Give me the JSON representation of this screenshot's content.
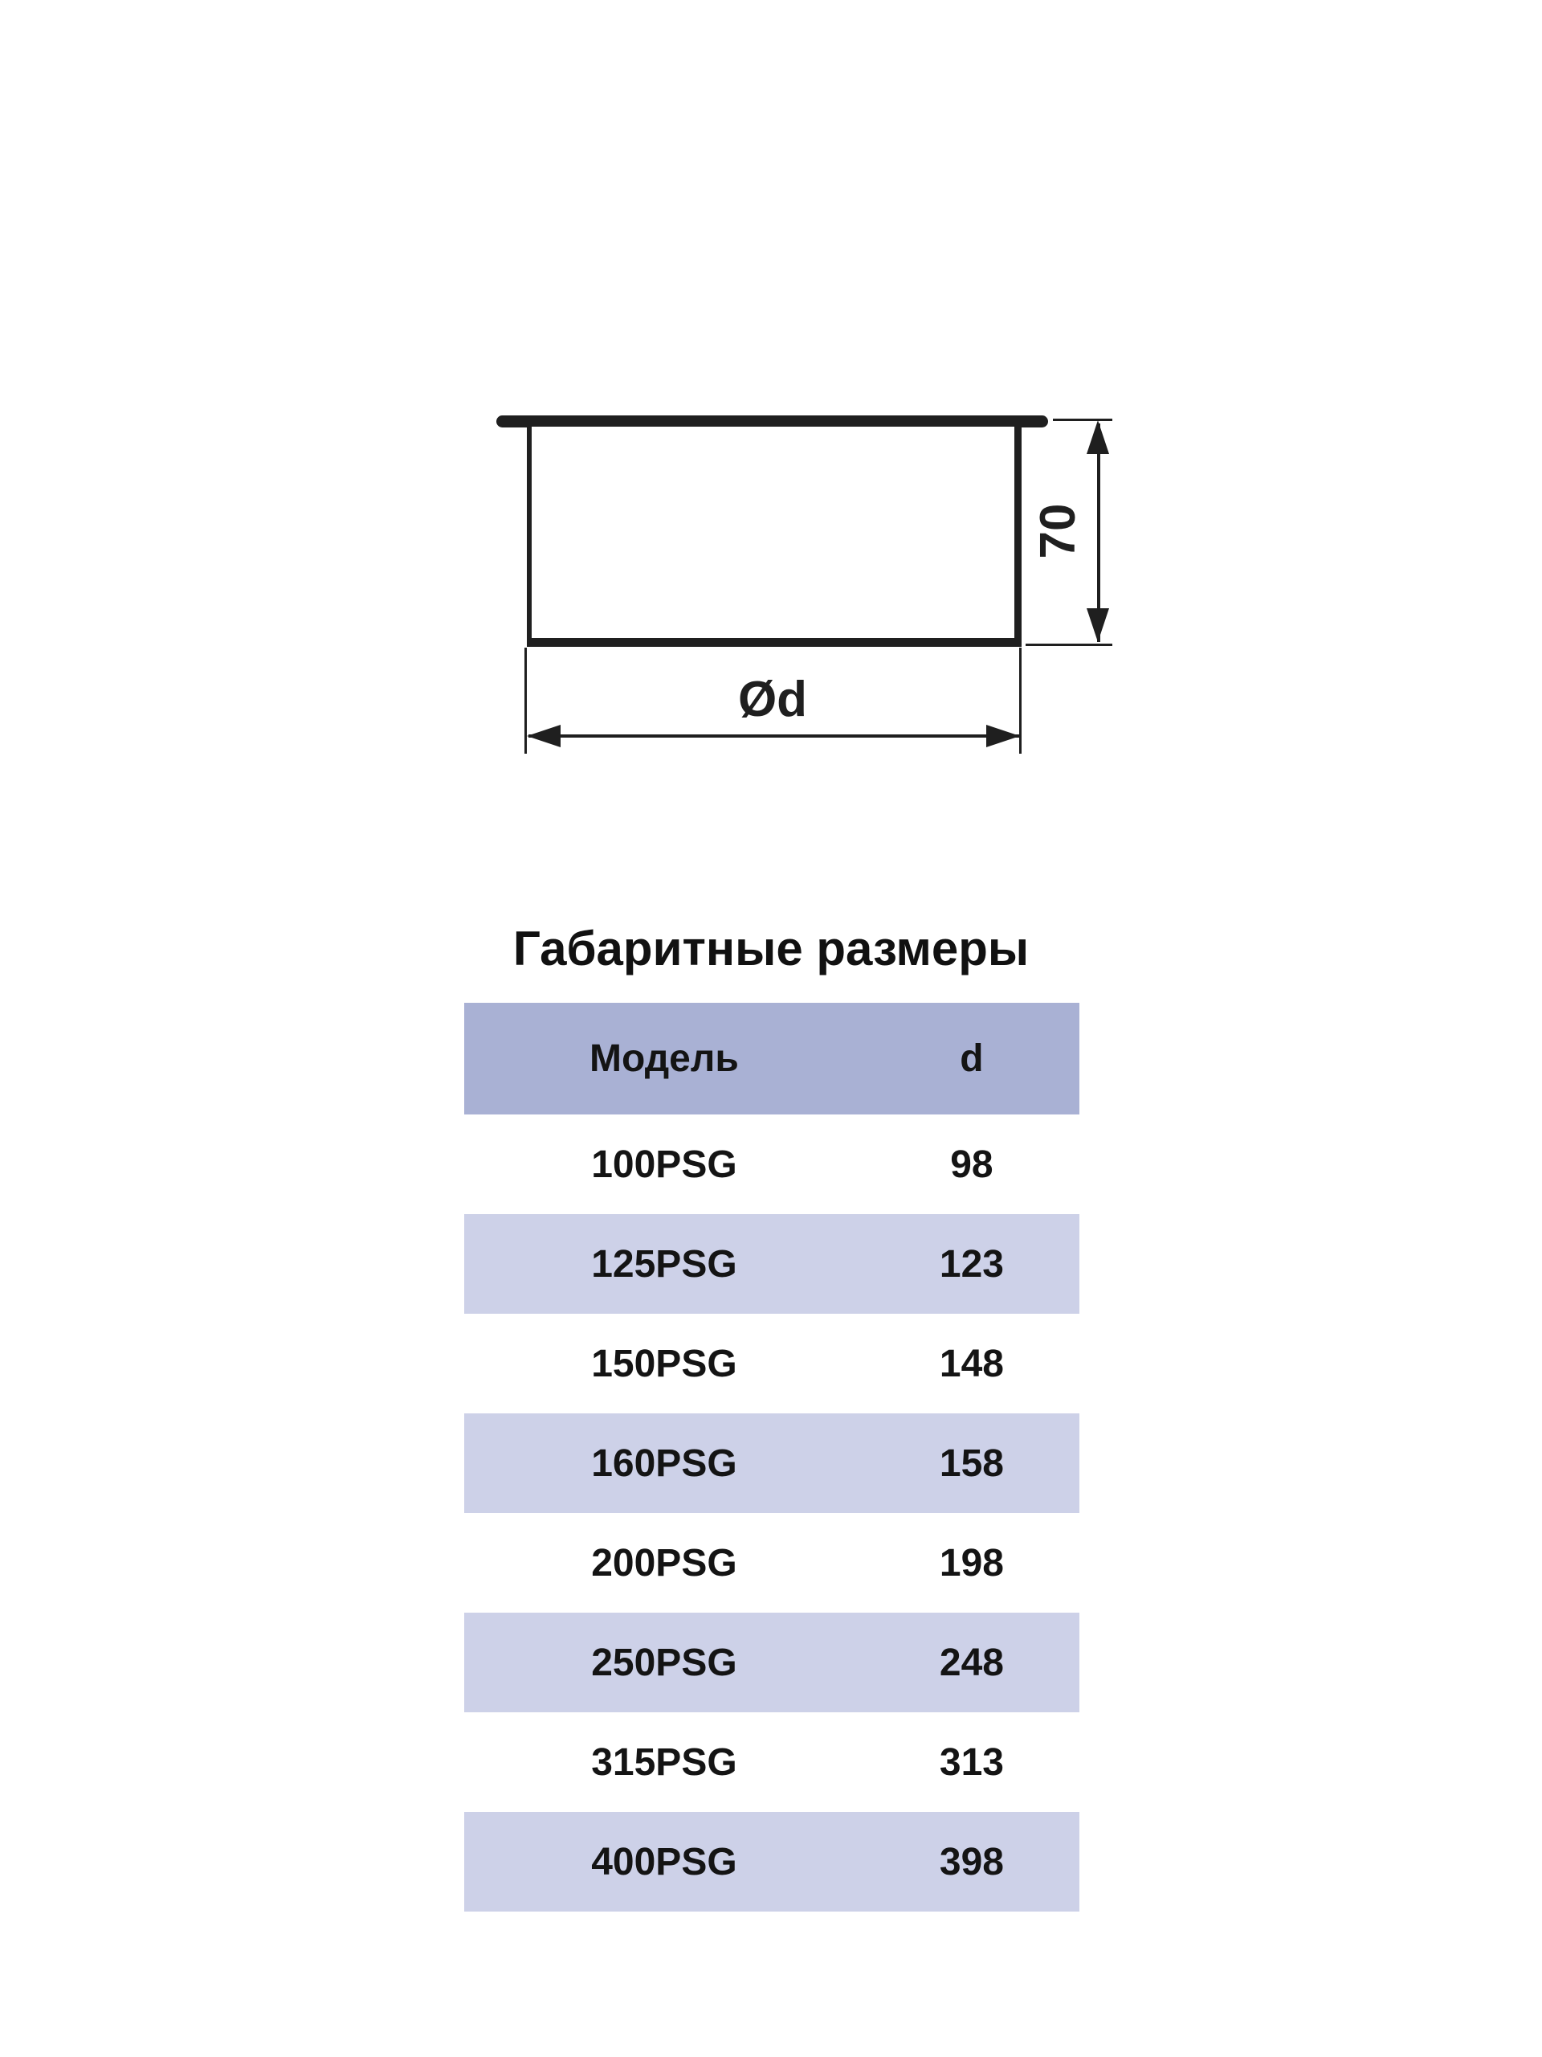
{
  "section_title": "Габаритные размеры",
  "diagram": {
    "height_label": "70",
    "diameter_label": "Ød"
  },
  "table": {
    "headers": [
      "Модель",
      "d"
    ],
    "rows": [
      {
        "model": "100PSG",
        "d": "98"
      },
      {
        "model": "125PSG",
        "d": "123"
      },
      {
        "model": "150PSG",
        "d": "148"
      },
      {
        "model": "160PSG",
        "d": "158"
      },
      {
        "model": "200PSG",
        "d": "198"
      },
      {
        "model": "250PSG",
        "d": "248"
      },
      {
        "model": "315PSG",
        "d": "313"
      },
      {
        "model": "400PSG",
        "d": "398"
      }
    ]
  },
  "colors": {
    "header_bg": "#a9b1d4",
    "alt_row_bg": "#cdd1e8",
    "row_bg": "#ffffff",
    "stroke": "#1f1f1f",
    "text": "#141414"
  }
}
